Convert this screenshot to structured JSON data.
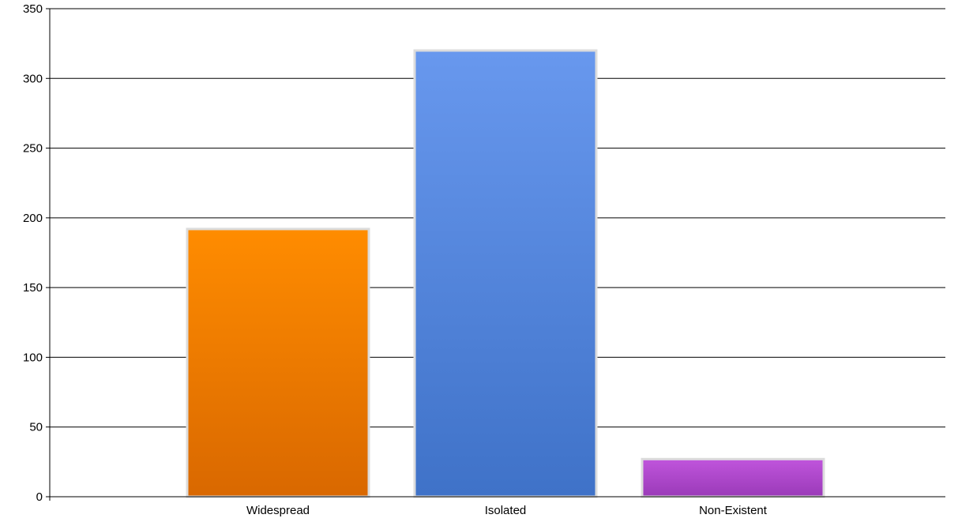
{
  "chart_data": {
    "type": "bar",
    "categories": [
      "Widespread",
      "Isolated",
      "Non-Existent"
    ],
    "values": [
      192,
      320,
      27
    ],
    "colors": [
      "#f58a00",
      "#5a8fe4",
      "#b24fd0"
    ],
    "ylim": [
      0,
      350
    ],
    "yticks": [
      0,
      50,
      100,
      150,
      200,
      250,
      300,
      350
    ],
    "grid": true,
    "title": "",
    "xlabel": "",
    "ylabel": ""
  }
}
